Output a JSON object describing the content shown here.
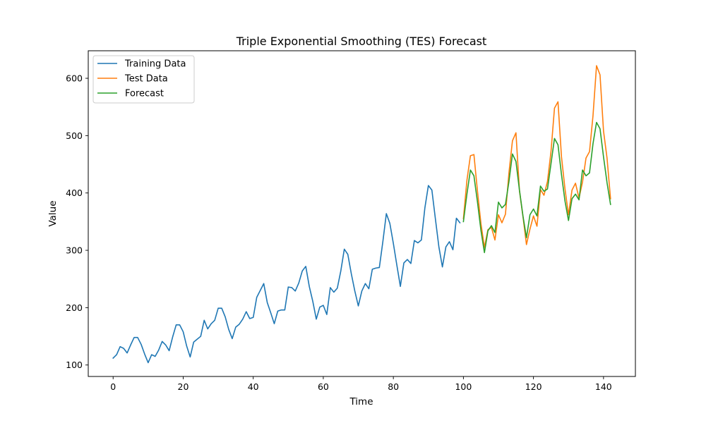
{
  "chart_data": {
    "type": "line",
    "title": "Triple Exponential Smoothing (TES) Forecast",
    "xlabel": "Time",
    "ylabel": "Value",
    "xlim": [
      -7.1,
      149.1
    ],
    "ylim": [
      80,
      648
    ],
    "xticks": [
      0,
      20,
      40,
      60,
      80,
      100,
      120,
      140
    ],
    "yticks": [
      100,
      200,
      300,
      400,
      500,
      600
    ],
    "grid": false,
    "legend_position": "top-left",
    "series": [
      {
        "name": "Training Data",
        "color": "#1f77b4",
        "x_start": 0,
        "values": [
          112,
          118,
          132,
          129,
          121,
          135,
          148,
          148,
          136,
          119,
          104,
          118,
          115,
          126,
          141,
          135,
          125,
          149,
          170,
          170,
          158,
          133,
          114,
          140,
          145,
          150,
          178,
          163,
          172,
          178,
          199,
          199,
          184,
          162,
          146,
          166,
          171,
          180,
          193,
          181,
          183,
          218,
          230,
          242,
          209,
          191,
          172,
          194,
          196,
          196,
          236,
          235,
          229,
          243,
          264,
          272,
          237,
          211,
          180,
          201,
          204,
          188,
          235,
          227,
          234,
          264,
          302,
          293,
          259,
          229,
          203,
          229,
          242,
          233,
          267,
          269,
          270,
          315,
          364,
          347,
          312,
          274,
          237,
          278,
          284,
          277,
          317,
          313,
          318,
          374,
          413,
          405,
          355,
          306,
          271,
          306,
          315,
          301,
          356,
          348
        ]
      },
      {
        "name": "Test Data",
        "color": "#ff7f0e",
        "x_start": 100,
        "values": [
          355,
          422,
          465,
          467,
          404,
          347,
          305,
          336,
          340,
          318,
          362,
          348,
          363,
          435,
          491,
          505,
          404,
          359,
          310,
          337,
          360,
          342,
          406,
          396,
          420,
          472,
          548,
          559,
          463,
          407,
          362,
          405,
          417,
          391,
          419,
          461,
          472,
          535,
          622,
          606,
          508,
          461,
          390
        ]
      },
      {
        "name": "Forecast",
        "color": "#2ca02c",
        "x_start": 100,
        "values": [
          350,
          398,
          440,
          430,
          385,
          335,
          296,
          334,
          343,
          331,
          384,
          374,
          380,
          420,
          468,
          455,
          405,
          360,
          322,
          362,
          372,
          360,
          412,
          403,
          407,
          451,
          495,
          484,
          432,
          386,
          352,
          390,
          398,
          388,
          440,
          430,
          435,
          486,
          523,
          512,
          463,
          418,
          380
        ]
      }
    ]
  }
}
